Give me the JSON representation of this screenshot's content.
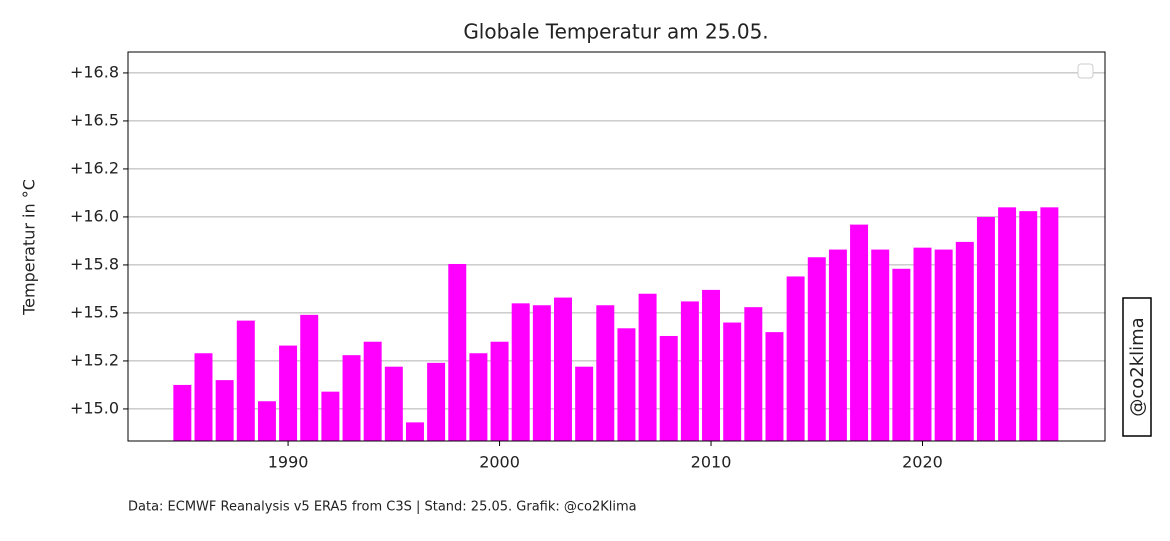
{
  "chart_data": {
    "type": "bar",
    "title": "Globale Temperatur am 25.05.",
    "y_label": "Temperatur in °C",
    "source": "Data: ECMWF Reanalysis v5 ERA5 from C3S | Stand: 25.05. Grafik: @co2Klima",
    "side_label": "@co2klima",
    "color": "#ff00ff",
    "grid": true,
    "x": [
      1985,
      1986,
      1987,
      1988,
      1989,
      1990,
      1991,
      1992,
      1993,
      1994,
      1995,
      1996,
      1997,
      1998,
      1999,
      2000,
      2001,
      2002,
      2003,
      2004,
      2005,
      2006,
      2007,
      2008,
      2009,
      2010,
      2011,
      2012,
      2013,
      2014,
      2015,
      2016,
      2017,
      2018,
      2019,
      2020,
      2021,
      2022,
      2023,
      2024,
      2025,
      2026
    ],
    "values": [
      15.125,
      15.29,
      15.15,
      15.46,
      15.04,
      15.33,
      15.49,
      15.09,
      15.28,
      15.35,
      15.22,
      14.93,
      15.24,
      15.755,
      15.29,
      15.35,
      15.55,
      15.54,
      15.58,
      15.22,
      15.54,
      15.42,
      15.6,
      15.38,
      15.56,
      15.62,
      15.45,
      15.53,
      15.4,
      15.69,
      15.79,
      15.83,
      15.96,
      15.83,
      15.73,
      15.84,
      15.83,
      15.87,
      16.0,
      16.05,
      16.03,
      16.05
    ],
    "xlim": [
      1982.43,
      2028.63
    ],
    "xticks": [
      1990,
      2000,
      2010,
      2020
    ],
    "ylim": [
      14.833,
      16.859
    ],
    "yticks": [
      {
        "value": 15.0,
        "label": "+15.0"
      },
      {
        "value": 15.25,
        "label": "+15.2"
      },
      {
        "value": 15.5,
        "label": "+15.5"
      },
      {
        "value": 15.75,
        "label": "+15.8"
      },
      {
        "value": 16.0,
        "label": "+16.0"
      },
      {
        "value": 16.25,
        "label": "+16.2"
      },
      {
        "value": 16.5,
        "label": "+16.5"
      },
      {
        "value": 16.75,
        "label": "+16.8"
      }
    ]
  }
}
